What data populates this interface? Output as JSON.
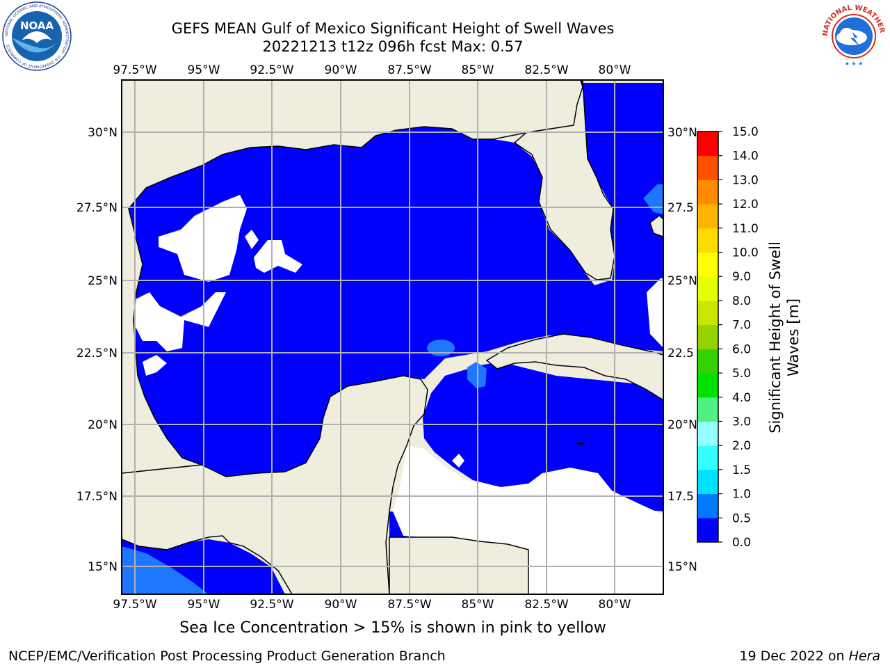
{
  "title": {
    "line1": "GEFS MEAN Gulf of Mexico Significant Height of Swell Waves",
    "line2": "20221213 t12z 096h fcst   Max: 0.57"
  },
  "logos": {
    "noaa": "NOAA",
    "noaa_ring": "NATIONAL OCEANIC AND ATMOSPHERIC ADMINISTRATION · U.S. DEPARTMENT OF COMMERCE",
    "nws_ring": "NATIONAL WEATHER SERVICE"
  },
  "map": {
    "lon_labels": [
      "97.5°W",
      "95°W",
      "92.5°W",
      "90°W",
      "87.5°W",
      "85°W",
      "82.5°W",
      "80°W"
    ],
    "lat_labels_left": [
      "30°N",
      "27.5°N",
      "25°N",
      "22.5°N",
      "20°N",
      "17.5°N",
      "15°N"
    ],
    "lat_labels_right": [
      "30°N",
      "27.5",
      "25°N",
      "22.5",
      "20°N",
      "17.5",
      "15°N"
    ],
    "colors": {
      "land": "#efeddd",
      "water": "#0000ff",
      "grid": "#b0b0b0",
      "no_data": "#ffffff"
    }
  },
  "colorbar": {
    "ticks": [
      "0.0",
      "0.5",
      "1.0",
      "1.5",
      "2.0",
      "3.0",
      "4.0",
      "5.0",
      "6.0",
      "7.0",
      "8.0",
      "9.0",
      "10.0",
      "11.0",
      "12.0",
      "13.0",
      "14.0",
      "15.0"
    ],
    "colors": [
      "#0000ff",
      "#0078ff",
      "#00e1ff",
      "#32ffff",
      "#96ffff",
      "#50f082",
      "#00e100",
      "#32d200",
      "#96d200",
      "#c8e600",
      "#e6ff00",
      "#ffff00",
      "#ffdc00",
      "#ffb400",
      "#ff8c00",
      "#ff5000",
      "#ff0000"
    ],
    "label_line1": "Significant Height of Swell",
    "label_line2": "Waves [m]"
  },
  "footer": {
    "ice_note": "Sea Ice Concentration > 15% is shown in pink to yellow",
    "credit": "NCEP/EMC/Verification Post Processing Product Generation Branch",
    "date": "19 Dec 2022 on ",
    "host": "Hera"
  }
}
